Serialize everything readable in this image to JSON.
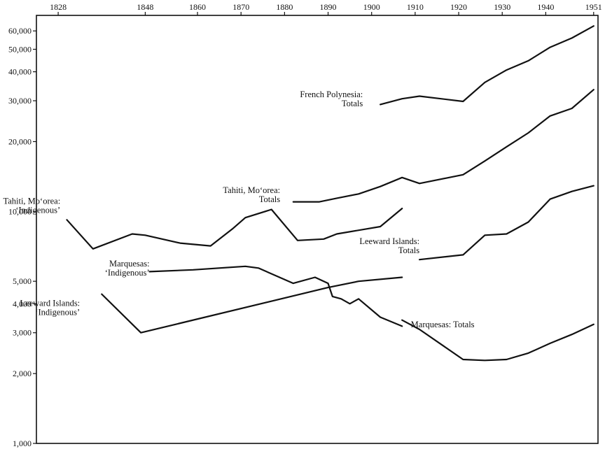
{
  "chart_data": {
    "type": "line",
    "title": "",
    "xlabel": "",
    "ylabel": "",
    "x_scale": "linear",
    "y_scale": "log",
    "xlim": [
      1823,
      1952
    ],
    "ylim": [
      1000,
      70000
    ],
    "grid": false,
    "legend": "none",
    "line_color": "#111111",
    "x_ticks": [
      1828,
      1848,
      1860,
      1870,
      1880,
      1890,
      1900,
      1910,
      1920,
      1930,
      1940,
      1951
    ],
    "x_tick_labels": [
      "1828",
      "1848",
      "1860",
      "1870",
      "1880",
      "1890",
      "1900",
      "1910",
      "1920",
      "1930",
      "1940",
      "1951"
    ],
    "y_ticks": [
      1000,
      2000,
      3000,
      4000,
      5000,
      10000,
      20000,
      30000,
      40000,
      50000,
      60000
    ],
    "y_tick_labels": [
      "1,000",
      "2,000",
      "3,000",
      "4,000",
      "5,000",
      "10,000",
      "20,000",
      "30,000",
      "40,000",
      "50,000",
      "60,000"
    ],
    "series": [
      {
        "name": "French Polynesia: Totals",
        "label_lines": [
          "French Polynesia:",
          "Totals"
        ],
        "label_x": 1898,
        "label_y": 30500,
        "points": [
          [
            1902,
            28900
          ],
          [
            1907,
            30600
          ],
          [
            1911,
            31400
          ],
          [
            1921,
            29800
          ],
          [
            1926,
            36000
          ],
          [
            1931,
            40700
          ],
          [
            1936,
            44600
          ],
          [
            1941,
            51000
          ],
          [
            1946,
            55900
          ],
          [
            1951,
            63000
          ]
        ]
      },
      {
        "name": "Tahiti, Mo‘orea: Totals",
        "label_lines": [
          "Tahiti, Mo‘orea:",
          "Totals"
        ],
        "label_x": 1879,
        "label_y": 11800,
        "points": [
          [
            1882,
            11000
          ],
          [
            1888,
            11000
          ],
          [
            1892,
            11400
          ],
          [
            1897,
            11900
          ],
          [
            1902,
            12800
          ],
          [
            1907,
            14000
          ],
          [
            1911,
            13200
          ],
          [
            1921,
            14400
          ],
          [
            1926,
            16500
          ],
          [
            1931,
            19000
          ],
          [
            1936,
            21800
          ],
          [
            1941,
            25800
          ],
          [
            1946,
            27800
          ],
          [
            1951,
            33500
          ]
        ]
      },
      {
        "name": "Tahiti, Mo‘orea: ‘Indigenous’",
        "label_lines": [
          "Tahiti, Mo‘orea:",
          "‘Indigenous’"
        ],
        "label_x": 1828.5,
        "label_y": 10600,
        "points": [
          [
            1830,
            9200
          ],
          [
            1836,
            6900
          ],
          [
            1845,
            8000
          ],
          [
            1848,
            7900
          ],
          [
            1856,
            7300
          ],
          [
            1863,
            7100
          ],
          [
            1868,
            8400
          ],
          [
            1871,
            9400
          ],
          [
            1877,
            10200
          ],
          [
            1883,
            7500
          ],
          [
            1889,
            7600
          ],
          [
            1892,
            8000
          ],
          [
            1902,
            8600
          ],
          [
            1907,
            10300
          ]
        ]
      },
      {
        "name": "Leeward Islands: Totals",
        "label_lines": [
          "Leeward Islands:",
          "Totals"
        ],
        "label_x": 1911,
        "label_y": 7100,
        "points": [
          [
            1911,
            6200
          ],
          [
            1921,
            6500
          ],
          [
            1926,
            7900
          ],
          [
            1931,
            8000
          ],
          [
            1936,
            9000
          ],
          [
            1941,
            11300
          ],
          [
            1946,
            12200
          ],
          [
            1951,
            12900
          ]
        ]
      },
      {
        "name": "Marquesas: ‘Indigenous’",
        "label_lines": [
          "Marquesas:",
          "‘Indigenous’"
        ],
        "label_x": 1849,
        "label_y": 5700,
        "points": [
          [
            1849,
            5500
          ],
          [
            1859,
            5600
          ],
          [
            1871,
            5800
          ],
          [
            1874,
            5700
          ],
          [
            1882,
            4900
          ],
          [
            1887,
            5200
          ],
          [
            1890,
            4900
          ],
          [
            1891,
            4300
          ],
          [
            1893,
            4200
          ],
          [
            1895,
            4000
          ],
          [
            1897,
            4200
          ],
          [
            1902,
            3500
          ],
          [
            1907,
            3200
          ]
        ]
      },
      {
        "name": "Marquesas: Totals",
        "label_lines": [
          "Marquesas: Totals"
        ],
        "label_x": 1909,
        "label_y": 3250,
        "points": [
          [
            1907,
            3400
          ],
          [
            1911,
            3100
          ],
          [
            1921,
            2300
          ],
          [
            1926,
            2280
          ],
          [
            1931,
            2300
          ],
          [
            1936,
            2450
          ],
          [
            1941,
            2700
          ],
          [
            1946,
            2950
          ],
          [
            1951,
            3260
          ]
        ]
      },
      {
        "name": "Leeward Islands: ‘Indigenous’",
        "label_lines": [
          "Leeward Islands:",
          "‘Indigenous’"
        ],
        "label_x": 1833,
        "label_y": 3850,
        "points": [
          [
            1838,
            4400
          ],
          [
            1847,
            3000
          ],
          [
            1890,
            4700
          ],
          [
            1897,
            5000
          ],
          [
            1907,
            5200
          ]
        ]
      }
    ]
  }
}
